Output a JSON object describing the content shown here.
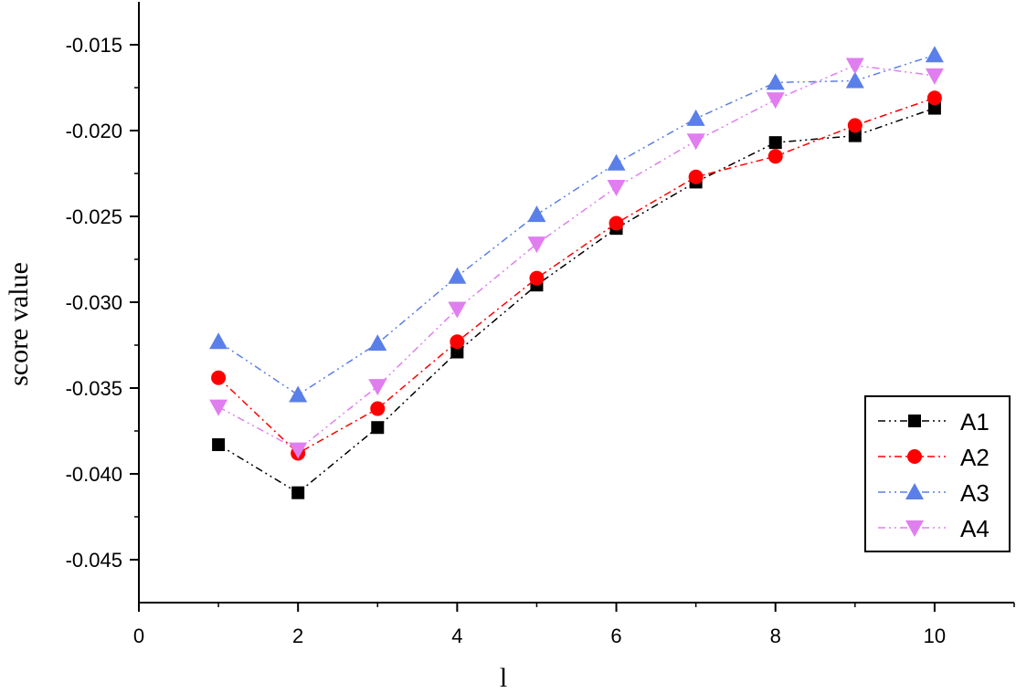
{
  "chart_data": {
    "type": "line",
    "title": "",
    "xlabel": "l",
    "ylabel": "score value",
    "xlim": [
      0,
      11
    ],
    "ylim": [
      -0.0475,
      -0.0125
    ],
    "x_ticks": [
      0,
      2,
      4,
      6,
      8,
      10
    ],
    "x_tick_labels": [
      "0",
      "2",
      "4",
      "6",
      "8",
      "10"
    ],
    "y_ticks": [
      -0.045,
      -0.04,
      -0.035,
      -0.03,
      -0.025,
      -0.02,
      -0.015
    ],
    "y_tick_labels": [
      "-0.045",
      "-0.040",
      "-0.035",
      "-0.030",
      "-0.025",
      "-0.020",
      "-0.015"
    ],
    "grid": false,
    "legend_position": "lower-right",
    "x": [
      1,
      2,
      3,
      4,
      5,
      6,
      7,
      8,
      9,
      10
    ],
    "series": [
      {
        "name": "A1",
        "values": [
          -0.0383,
          -0.0411,
          -0.0373,
          -0.0329,
          -0.029,
          -0.0257,
          -0.023,
          -0.0207,
          -0.0203,
          -0.0187
        ],
        "color": "#000000",
        "marker": "square",
        "dash": "8 4 2 4 2 4"
      },
      {
        "name": "A2",
        "values": [
          -0.0344,
          -0.0388,
          -0.0362,
          -0.0323,
          -0.0286,
          -0.0254,
          -0.0227,
          -0.0215,
          -0.0197,
          -0.0181
        ],
        "color": "#ff0000",
        "marker": "circle",
        "dash": "8 4 2 4"
      },
      {
        "name": "A3",
        "values": [
          -0.0323,
          -0.0354,
          -0.0324,
          -0.0285,
          -0.0249,
          -0.0219,
          -0.0193,
          -0.0172,
          -0.0171,
          -0.0156
        ],
        "color": "#5b7fe8",
        "marker": "triangle-up",
        "dash": "8 4 2 4 2 4"
      },
      {
        "name": "A4",
        "values": [
          -0.0361,
          -0.0386,
          -0.0349,
          -0.0304,
          -0.0266,
          -0.0233,
          -0.0206,
          -0.0182,
          -0.0162,
          -0.0168
        ],
        "color": "#e07ef0",
        "marker": "triangle-down",
        "dash": "8 4 2 4 2 4"
      }
    ]
  }
}
